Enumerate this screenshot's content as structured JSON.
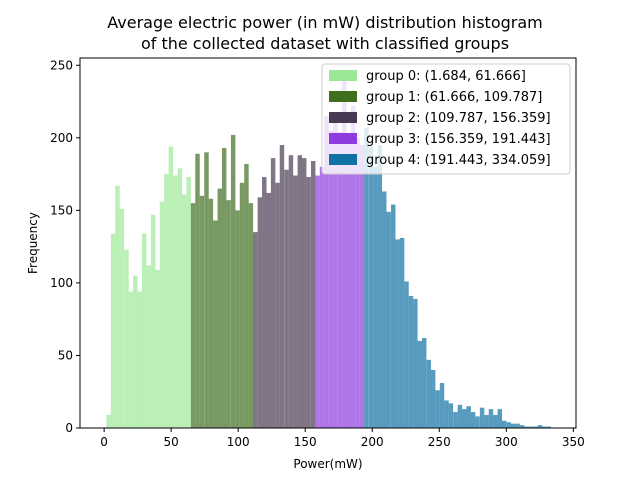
{
  "chart_data": {
    "type": "bar",
    "title_line1": "Average electric power (in mW) distribution histogram",
    "title_line2": "of the collected dataset with classified groups",
    "xlabel": "Power(mW)",
    "ylabel": "Frequency",
    "xlim": [
      -18,
      352
    ],
    "ylim": [
      0,
      255
    ],
    "xticks": [
      0,
      50,
      100,
      150,
      200,
      250,
      300,
      350
    ],
    "yticks": [
      0,
      50,
      100,
      150,
      200,
      250
    ],
    "bin_width": 3.32,
    "bars": [
      {
        "x": 1.684,
        "h": 9
      },
      {
        "x": 5.0,
        "h": 134
      },
      {
        "x": 8.3,
        "h": 167
      },
      {
        "x": 11.6,
        "h": 151
      },
      {
        "x": 15.0,
        "h": 123
      },
      {
        "x": 18.3,
        "h": 94
      },
      {
        "x": 21.6,
        "h": 105
      },
      {
        "x": 24.9,
        "h": 94
      },
      {
        "x": 28.2,
        "h": 134
      },
      {
        "x": 31.5,
        "h": 112
      },
      {
        "x": 34.9,
        "h": 147
      },
      {
        "x": 38.2,
        "h": 109
      },
      {
        "x": 41.5,
        "h": 156
      },
      {
        "x": 44.8,
        "h": 175
      },
      {
        "x": 48.1,
        "h": 194
      },
      {
        "x": 51.4,
        "h": 174
      },
      {
        "x": 54.8,
        "h": 179
      },
      {
        "x": 58.1,
        "h": 161
      },
      {
        "x": 61.4,
        "h": 173
      },
      {
        "x": 64.7,
        "h": 155
      },
      {
        "x": 68.0,
        "h": 189
      },
      {
        "x": 71.3,
        "h": 160
      },
      {
        "x": 74.7,
        "h": 190
      },
      {
        "x": 78.0,
        "h": 158
      },
      {
        "x": 81.3,
        "h": 143
      },
      {
        "x": 84.6,
        "h": 165
      },
      {
        "x": 87.9,
        "h": 193
      },
      {
        "x": 91.2,
        "h": 157
      },
      {
        "x": 94.6,
        "h": 202
      },
      {
        "x": 97.9,
        "h": 150
      },
      {
        "x": 101.2,
        "h": 169
      },
      {
        "x": 104.5,
        "h": 182
      },
      {
        "x": 107.8,
        "h": 155
      },
      {
        "x": 111.1,
        "h": 135
      },
      {
        "x": 114.5,
        "h": 159
      },
      {
        "x": 117.8,
        "h": 173
      },
      {
        "x": 121.1,
        "h": 162
      },
      {
        "x": 124.4,
        "h": 186
      },
      {
        "x": 127.7,
        "h": 169
      },
      {
        "x": 131.0,
        "h": 195
      },
      {
        "x": 134.4,
        "h": 178
      },
      {
        "x": 137.7,
        "h": 188
      },
      {
        "x": 141.0,
        "h": 174
      },
      {
        "x": 144.3,
        "h": 188
      },
      {
        "x": 147.6,
        "h": 186
      },
      {
        "x": 150.9,
        "h": 173
      },
      {
        "x": 154.3,
        "h": 184
      },
      {
        "x": 157.6,
        "h": 174
      },
      {
        "x": 160.9,
        "h": 180
      },
      {
        "x": 164.2,
        "h": 215
      },
      {
        "x": 167.5,
        "h": 205
      },
      {
        "x": 170.8,
        "h": 213
      },
      {
        "x": 174.2,
        "h": 204
      },
      {
        "x": 177.5,
        "h": 240
      },
      {
        "x": 180.8,
        "h": 197
      },
      {
        "x": 184.1,
        "h": 222
      },
      {
        "x": 187.4,
        "h": 200
      },
      {
        "x": 190.7,
        "h": 195
      },
      {
        "x": 194.0,
        "h": 207
      },
      {
        "x": 197.4,
        "h": 194
      },
      {
        "x": 200.7,
        "h": 180
      },
      {
        "x": 204.0,
        "h": 195
      },
      {
        "x": 207.3,
        "h": 163
      },
      {
        "x": 210.6,
        "h": 149
      },
      {
        "x": 214.0,
        "h": 154
      },
      {
        "x": 217.3,
        "h": 130
      },
      {
        "x": 220.6,
        "h": 131
      },
      {
        "x": 223.9,
        "h": 101
      },
      {
        "x": 227.2,
        "h": 91
      },
      {
        "x": 230.5,
        "h": 89
      },
      {
        "x": 233.8,
        "h": 60
      },
      {
        "x": 237.1,
        "h": 62
      },
      {
        "x": 240.5,
        "h": 47
      },
      {
        "x": 243.8,
        "h": 40
      },
      {
        "x": 247.1,
        "h": 26
      },
      {
        "x": 250.4,
        "h": 31
      },
      {
        "x": 253.7,
        "h": 19
      },
      {
        "x": 257.0,
        "h": 17
      },
      {
        "x": 260.4,
        "h": 11
      },
      {
        "x": 263.7,
        "h": 16
      },
      {
        "x": 267.0,
        "h": 13
      },
      {
        "x": 270.3,
        "h": 15
      },
      {
        "x": 273.6,
        "h": 11
      },
      {
        "x": 276.9,
        "h": 8
      },
      {
        "x": 280.3,
        "h": 14
      },
      {
        "x": 283.6,
        "h": 9
      },
      {
        "x": 286.9,
        "h": 13
      },
      {
        "x": 290.2,
        "h": 9
      },
      {
        "x": 293.5,
        "h": 13
      },
      {
        "x": 296.8,
        "h": 5
      },
      {
        "x": 300.2,
        "h": 4
      },
      {
        "x": 303.5,
        "h": 3
      },
      {
        "x": 306.8,
        "h": 3
      },
      {
        "x": 310.1,
        "h": 2
      },
      {
        "x": 313.4,
        "h": 1
      },
      {
        "x": 316.7,
        "h": 1
      },
      {
        "x": 320.0,
        "h": 1
      },
      {
        "x": 323.4,
        "h": 2
      },
      {
        "x": 326.7,
        "h": 1
      },
      {
        "x": 330.0,
        "h": 1
      }
    ],
    "groups": [
      {
        "label": "group 0: (1.684, 61.666]",
        "min": 1.684,
        "max": 61.666,
        "color": "#9de896",
        "alpha": 0.7
      },
      {
        "label": "group 1: (61.666, 109.787]",
        "min": 61.666,
        "max": 109.787,
        "color": "#3f6e1f",
        "alpha": 0.7
      },
      {
        "label": "group 2: (109.787, 156.359]",
        "min": 109.787,
        "max": 156.359,
        "color": "#483a52",
        "alpha": 0.7
      },
      {
        "label": "group 3: (156.359, 191.443]",
        "min": 156.359,
        "max": 191.443,
        "color": "#8e3be0",
        "alpha": 0.7
      },
      {
        "label": "group 4: (191.443, 334.059]",
        "min": 191.443,
        "max": 334.059,
        "color": "#0f72a3",
        "alpha": 0.7
      }
    ],
    "legend_position": "top-right",
    "grid": false
  }
}
